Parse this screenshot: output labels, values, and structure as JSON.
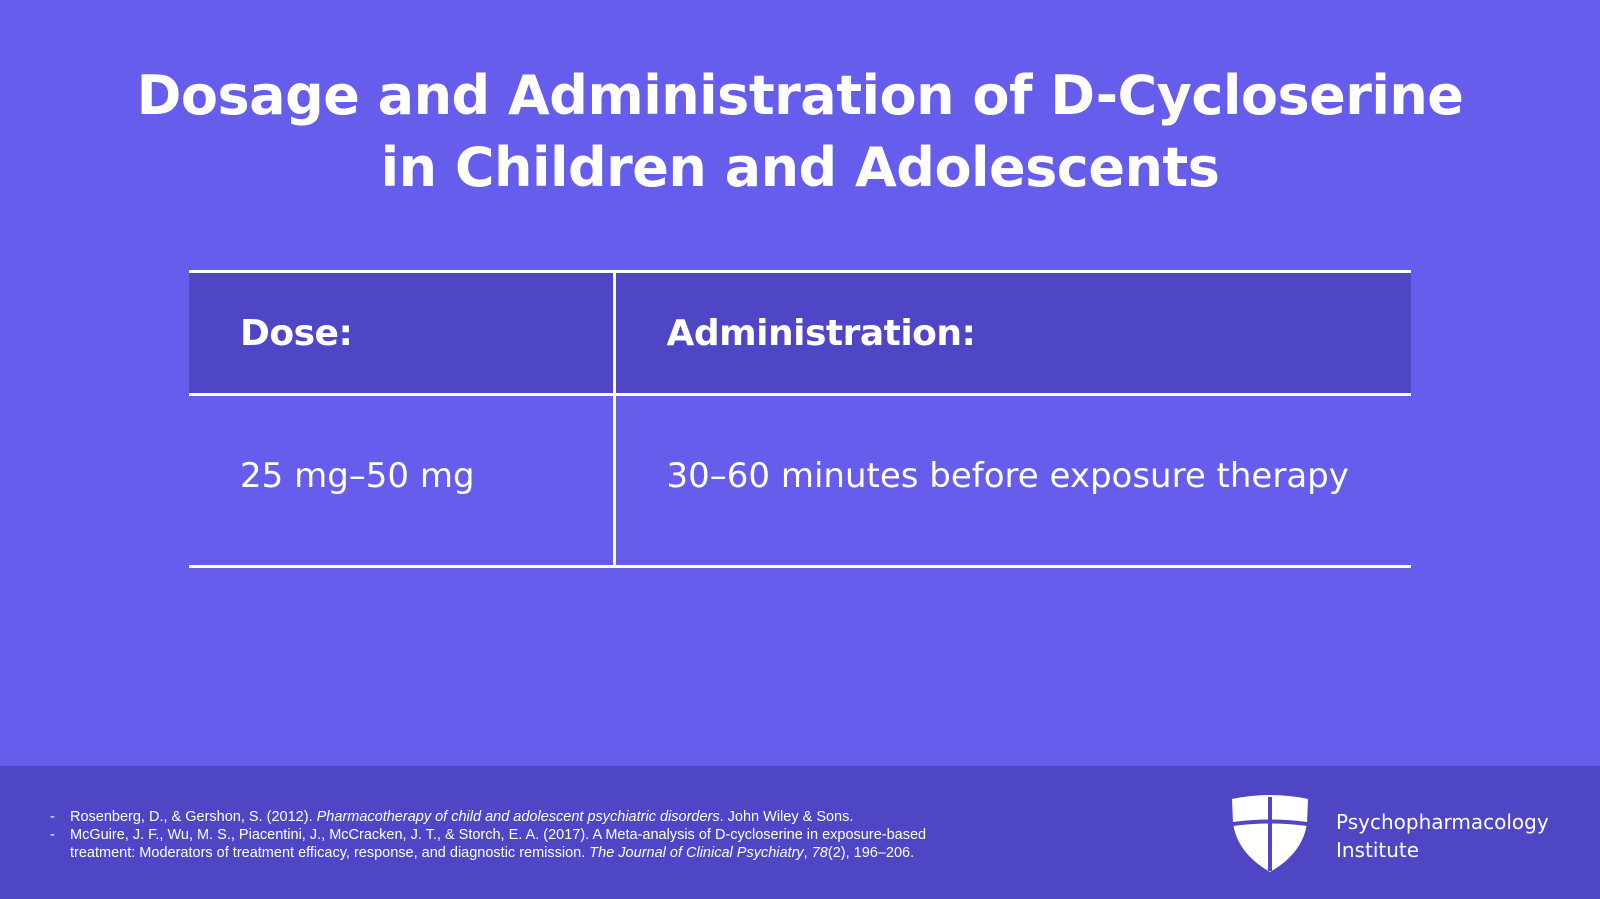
{
  "title": {
    "line1": "Dosage and Administration of D-Cycloserine",
    "line2": "in Children and Adolescents"
  },
  "table": {
    "headers": [
      "Dose:",
      "Administration:"
    ],
    "rows": [
      [
        "25 mg–50 mg",
        "30–60 minutes before exposure therapy"
      ]
    ]
  },
  "references": [
    {
      "before": "Rosenberg, D., & Gershon, S. (2012). ",
      "italic": "Pharmacotherapy of child and adolescent psychiatric disorders",
      "after": ". John Wiley & Sons."
    },
    {
      "before": "McGuire, J. F., Wu, M. S., Piacentini, J., McCracken, J. T., & Storch, E. A. (2017). A Meta-analysis of D-cycloserine in exposure-based treatment: Moderators of treatment efficacy, response, and diagnostic remission. ",
      "italic": "The Journal of Clinical Psychiatry",
      "sep": ", ",
      "volume": "78",
      "after": "(2), 196–206."
    }
  ],
  "brand": {
    "line1": "Psychopharmacology",
    "line2": "Institute",
    "logo_icon": "shield-icon"
  },
  "colors": {
    "background": "#675DED",
    "header_fill": "#4F46C6",
    "footer_fill": "#4F46C6",
    "text": "#FFFFFF"
  }
}
